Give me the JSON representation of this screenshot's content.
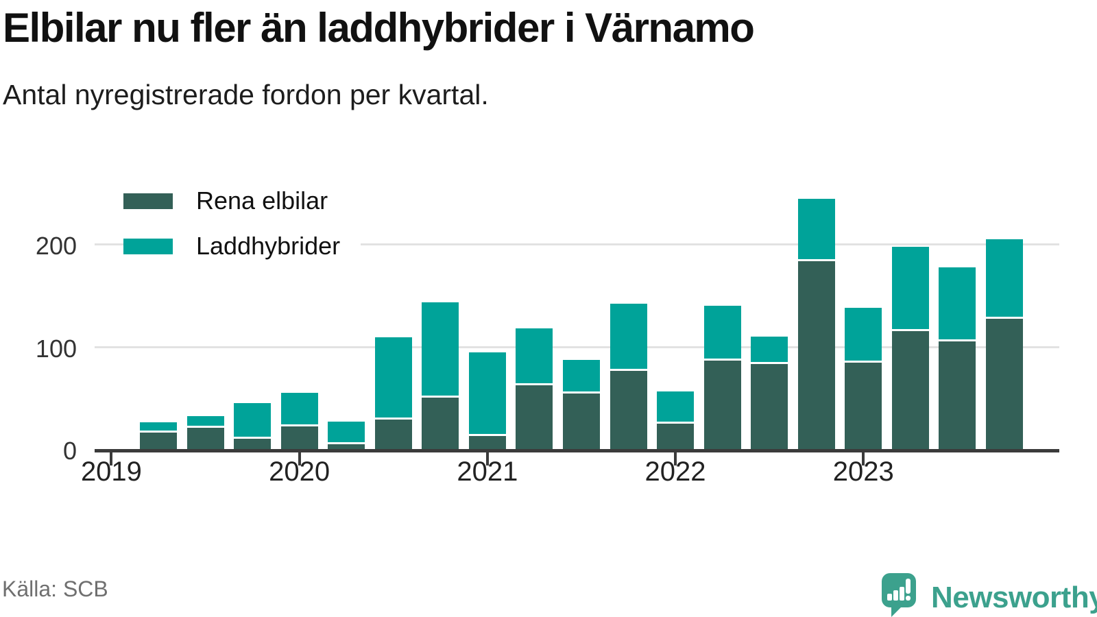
{
  "header": {
    "title": "Elbilar nu fler än laddhybrider i Värnamo",
    "subtitle": "Antal nyregistrerade fordon per kvartal."
  },
  "footer": {
    "source": "Källa: SCB",
    "brand": "Newsworthy"
  },
  "colors": {
    "elbilar": "#336057",
    "laddhybrider": "#00A399",
    "axis": "#3B3B3B",
    "grid": "#E2E2E2",
    "brand_teal": "#3CA18D",
    "title_text": "#111111",
    "source_text": "#6F6F6F"
  },
  "chart_data": {
    "type": "bar",
    "stacked": true,
    "title": "Elbilar nu fler än laddhybrider i Värnamo",
    "subtitle": "Antal nyregistrerade fordon per kvartal.",
    "xlabel": "",
    "ylabel": "",
    "ylim": [
      0,
      250
    ],
    "yticks": [
      0,
      100,
      200
    ],
    "grid": true,
    "legend_position": "top-left",
    "x_year_ticks": [
      "2019",
      "2020",
      "2021",
      "2022",
      "2023"
    ],
    "categories": [
      "2019 Q2",
      "2019 Q3",
      "2019 Q4",
      "2020 Q1",
      "2020 Q2",
      "2020 Q3",
      "2020 Q4",
      "2021 Q1",
      "2021 Q2",
      "2021 Q3",
      "2021 Q4",
      "2022 Q1",
      "2022 Q2",
      "2022 Q3",
      "2022 Q4",
      "2023 Q1",
      "2023 Q2",
      "2023 Q3",
      "2023 Q4"
    ],
    "series": [
      {
        "name": "Rena elbilar",
        "color": "#336057",
        "values": [
          16,
          21,
          10,
          22,
          5,
          29,
          50,
          13,
          62,
          54,
          76,
          25,
          86,
          83,
          183,
          84,
          115,
          105,
          127
        ]
      },
      {
        "name": "Laddhybrider",
        "color": "#00A399",
        "values": [
          10,
          11,
          35,
          33,
          22,
          80,
          93,
          81,
          56,
          33,
          66,
          31,
          54,
          27,
          61,
          54,
          82,
          72,
          78
        ]
      }
    ]
  }
}
